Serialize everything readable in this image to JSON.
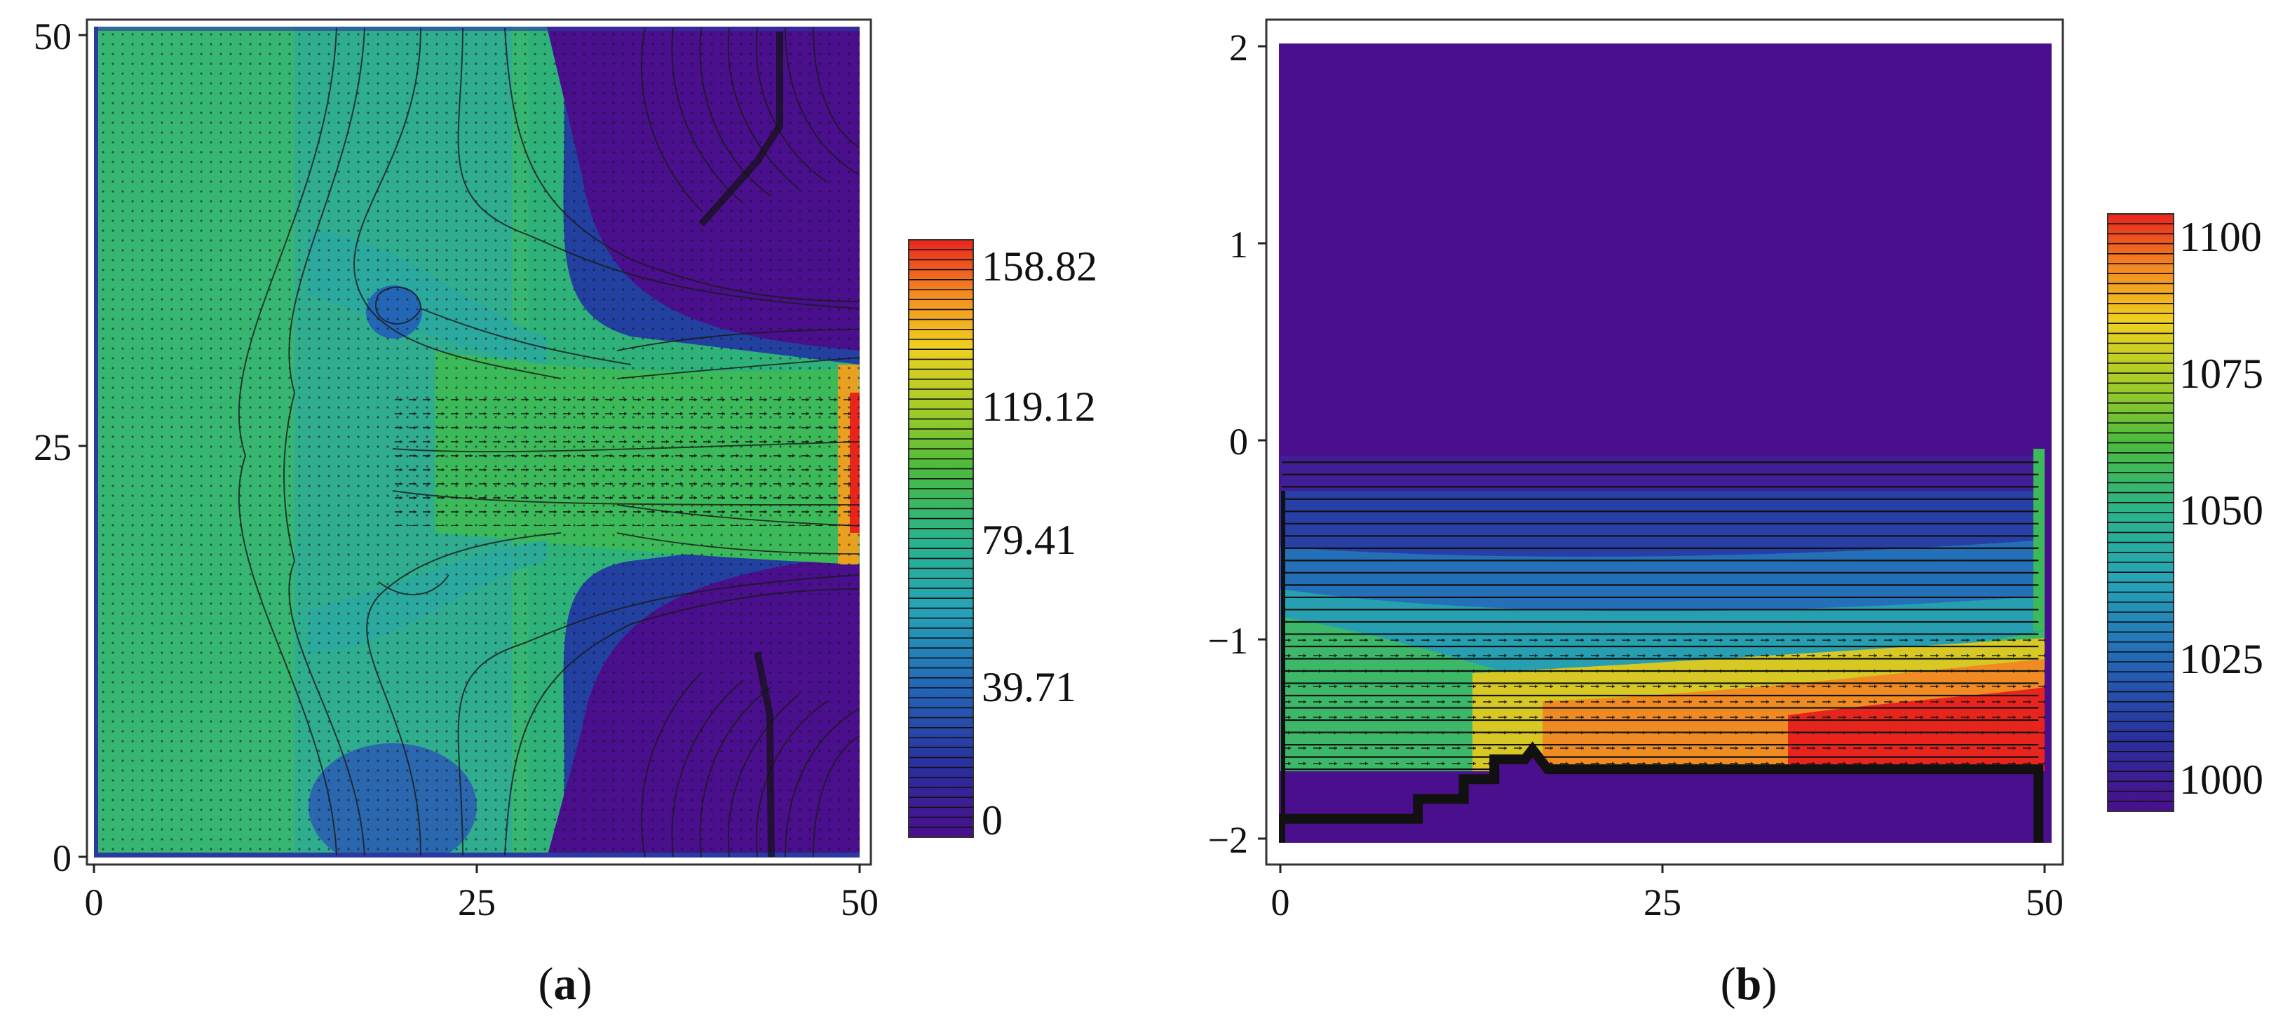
{
  "chart_data": [
    {
      "type": "heatmap",
      "caption": "(a)",
      "x_ticks": [
        "0",
        "25",
        "50"
      ],
      "y_ticks": [
        "0",
        "25",
        "50"
      ],
      "xlim": [
        0,
        50
      ],
      "ylim": [
        0,
        50
      ],
      "colorbar": {
        "min": 0,
        "max": 158.82,
        "tick_labels": [
          "158.82",
          "119.12",
          "79.41",
          "39.71",
          "0"
        ],
        "tick_values": [
          158.82,
          119.12,
          79.41,
          39.71,
          0
        ]
      },
      "overlays": [
        "velocity-vectors",
        "contour-lines"
      ],
      "field_description": {
        "background_value": 70,
        "right_region_value": 0,
        "jet_value": 100,
        "jet_y_range": [
          17.5,
          31
        ]
      }
    },
    {
      "type": "heatmap",
      "caption": "(b)",
      "x_ticks": [
        "0",
        "25",
        "50"
      ],
      "y_ticks": [
        "2",
        "1",
        "0",
        "−1",
        "−2"
      ],
      "xlim": [
        0,
        50
      ],
      "ylim": [
        -2,
        2
      ],
      "colorbar": {
        "min": 1000,
        "max": 1100,
        "tick_labels": [
          "1100",
          "1075",
          "1050",
          "1025",
          "1000"
        ],
        "tick_values": [
          1100,
          1075,
          1050,
          1025,
          1000
        ]
      },
      "overlays": [
        "velocity-vectors",
        "contour-lines",
        "bottom-boundary"
      ],
      "field_description": {
        "upper_value": 1000,
        "lower_layer_top": -0.1,
        "lower_layer_range": [
          1000,
          1100
        ],
        "bottom_profile_x": [
          0,
          9,
          9,
          12,
          12,
          14,
          14,
          16,
          16.5,
          17,
          17.5,
          49.5
        ],
        "bottom_profile_y": [
          -1.9,
          -1.9,
          -1.8,
          -1.8,
          -1.7,
          -1.7,
          -1.6,
          -1.6,
          -1.55,
          -1.6,
          -1.65,
          -1.65
        ]
      }
    }
  ],
  "colors": {
    "low": "#4a0f8c",
    "high": "#e8251c",
    "contour": "#1a1a1a",
    "vector": "#111111"
  }
}
